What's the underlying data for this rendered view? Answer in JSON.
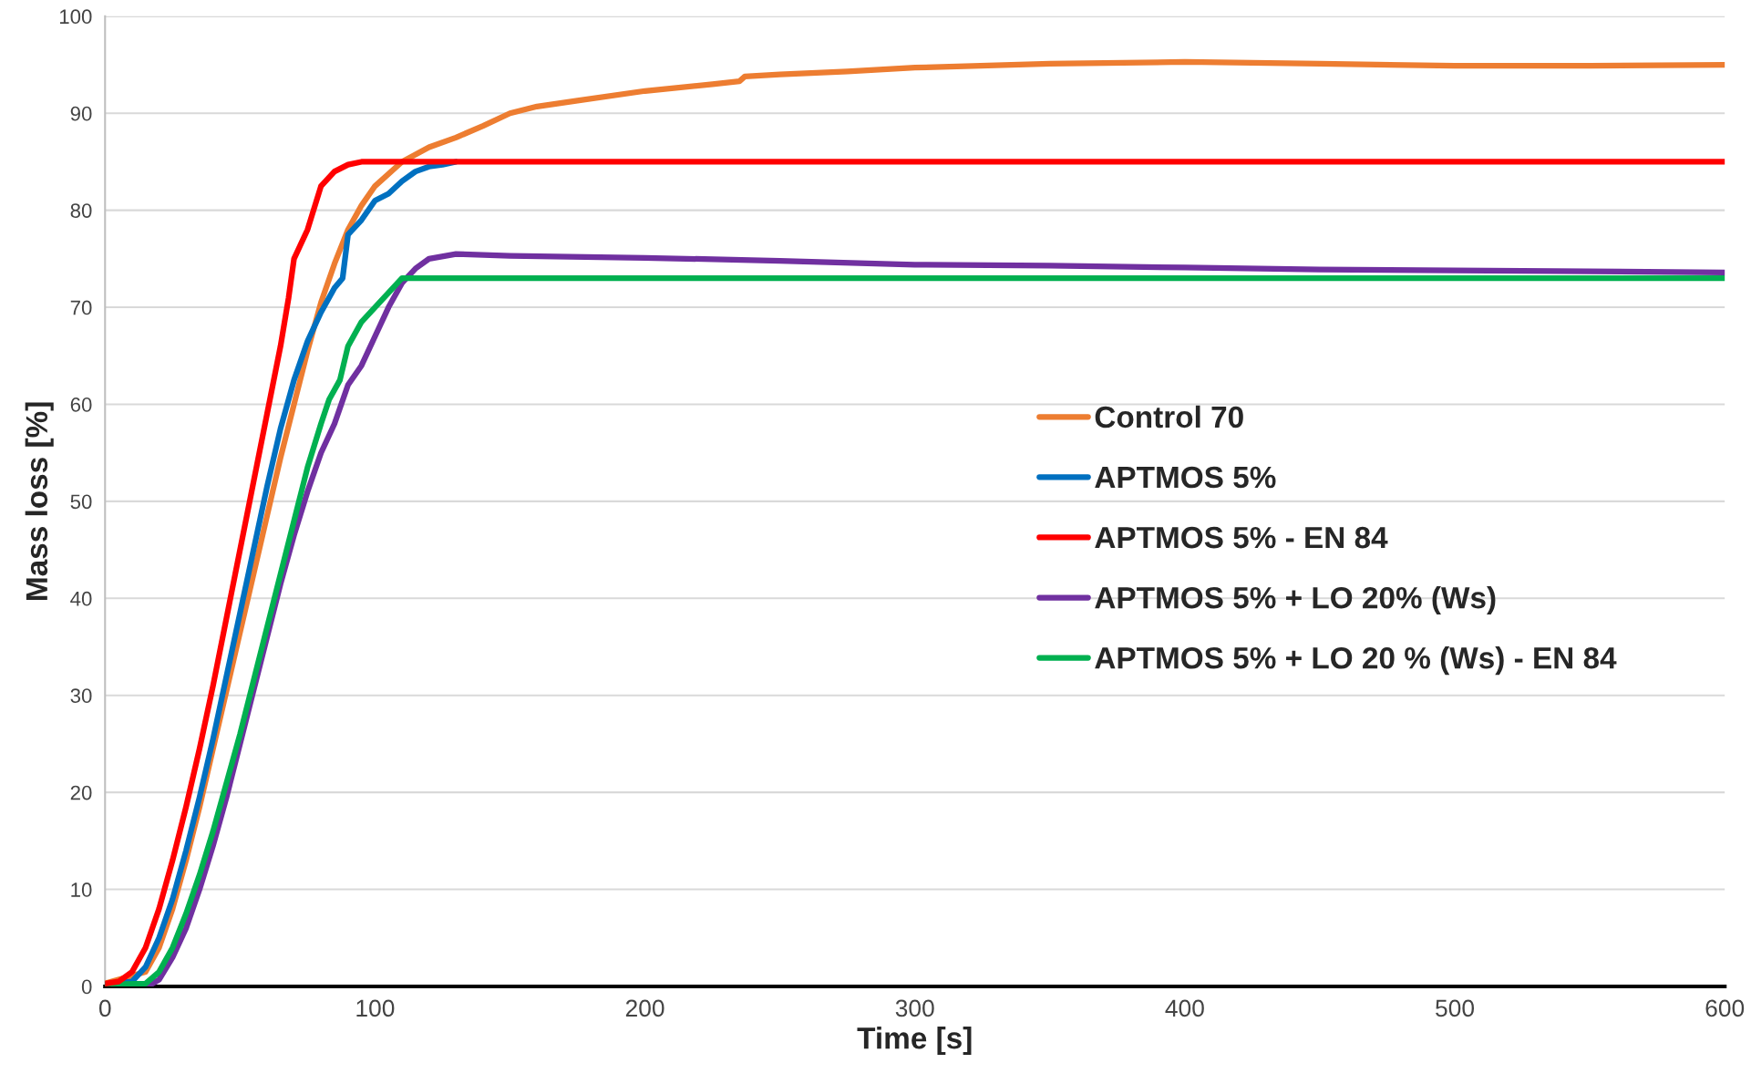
{
  "chart_data": {
    "type": "line",
    "xlabel": "Time [s]",
    "ylabel": "Mass loss [%]",
    "xlim": [
      0,
      600
    ],
    "ylim": [
      0,
      100
    ],
    "xticks": [
      0,
      100,
      200,
      300,
      400,
      500,
      600
    ],
    "yticks": [
      0,
      10,
      20,
      30,
      40,
      50,
      60,
      70,
      80,
      90,
      100
    ],
    "grid": "y",
    "legend": "right",
    "marker": "none",
    "line_style": "solid",
    "series": [
      {
        "name": "Control 70",
        "color": "#ed7d31",
        "x": [
          0,
          15,
          20,
          25,
          30,
          35,
          40,
          45,
          50,
          55,
          60,
          65,
          70,
          75,
          80,
          85,
          90,
          95,
          100,
          110,
          120,
          130,
          140,
          150,
          160,
          175,
          200,
          225,
          235,
          237,
          250,
          275,
          300,
          350,
          400,
          450,
          500,
          550,
          600
        ],
        "values": [
          0.3,
          1.5,
          4,
          8,
          13,
          18.5,
          24.5,
          30.5,
          36.5,
          42.5,
          48.5,
          54.5,
          60,
          65.5,
          70.5,
          74.5,
          78,
          80.5,
          82.5,
          85,
          86.5,
          87.5,
          88.7,
          90,
          90.7,
          91.3,
          92.3,
          93,
          93.3,
          93.8,
          94,
          94.3,
          94.7,
          95.1,
          95.3,
          95.1,
          94.9,
          94.9,
          95
        ]
      },
      {
        "name": "APTMOS 5%",
        "color": "#0070c0",
        "x": [
          0,
          10,
          15,
          20,
          25,
          30,
          35,
          40,
          45,
          50,
          55,
          60,
          65,
          70,
          75,
          80,
          85,
          88,
          90,
          95,
          100,
          105,
          110,
          115,
          120,
          125,
          130
        ],
        "values": [
          0.2,
          0.5,
          2,
          5,
          9,
          14,
          19.5,
          25.5,
          32,
          38.5,
          45,
          51.5,
          57.5,
          62.5,
          66.5,
          69.5,
          72,
          73,
          77.5,
          79,
          81,
          81.7,
          83,
          84,
          84.5,
          84.7,
          85
        ]
      },
      {
        "name": "APTMOS 5% - EN 84",
        "color": "#ff0000",
        "x": [
          0,
          5,
          10,
          15,
          20,
          25,
          30,
          35,
          40,
          45,
          50,
          55,
          60,
          65,
          68,
          70,
          75,
          80,
          85,
          90,
          95,
          600
        ],
        "values": [
          0.3,
          0.5,
          1.5,
          4,
          8,
          13,
          18.5,
          24.5,
          31,
          38,
          45,
          52,
          59,
          66,
          71,
          75,
          78,
          82.5,
          84,
          84.7,
          85,
          85
        ]
      },
      {
        "name": "APTMOS 5% + LO 20% (Ws)",
        "color": "#7030a0",
        "x": [
          0,
          17,
          20,
          25,
          30,
          35,
          40,
          45,
          50,
          55,
          60,
          65,
          70,
          75,
          80,
          85,
          90,
          95,
          100,
          105,
          110,
          115,
          120,
          130,
          150,
          200,
          250,
          300,
          350,
          400,
          450,
          500,
          600
        ],
        "values": [
          0.1,
          0.2,
          0.7,
          3,
          6,
          10,
          14.5,
          19.5,
          25,
          30.5,
          36,
          41.5,
          46.5,
          51,
          55,
          58,
          62,
          64,
          67,
          70,
          72.5,
          74,
          75,
          75.5,
          75.3,
          75.1,
          74.8,
          74.4,
          74.3,
          74.1,
          73.9,
          73.8,
          73.6
        ]
      },
      {
        "name": "APTMOS 5% + LO 20 % (Ws) - EN 84",
        "color": "#00b050",
        "x": [
          0,
          15,
          20,
          25,
          30,
          35,
          40,
          45,
          50,
          55,
          60,
          65,
          70,
          75,
          80,
          83,
          87,
          90,
          95,
          100,
          105,
          110,
          115,
          600
        ],
        "values": [
          0.2,
          0.3,
          1.5,
          4,
          7.5,
          11.5,
          16,
          21,
          26,
          31.5,
          37,
          42.5,
          48,
          53.5,
          58,
          60.5,
          62.5,
          66,
          68.5,
          70,
          71.5,
          73,
          73,
          73
        ]
      }
    ]
  }
}
